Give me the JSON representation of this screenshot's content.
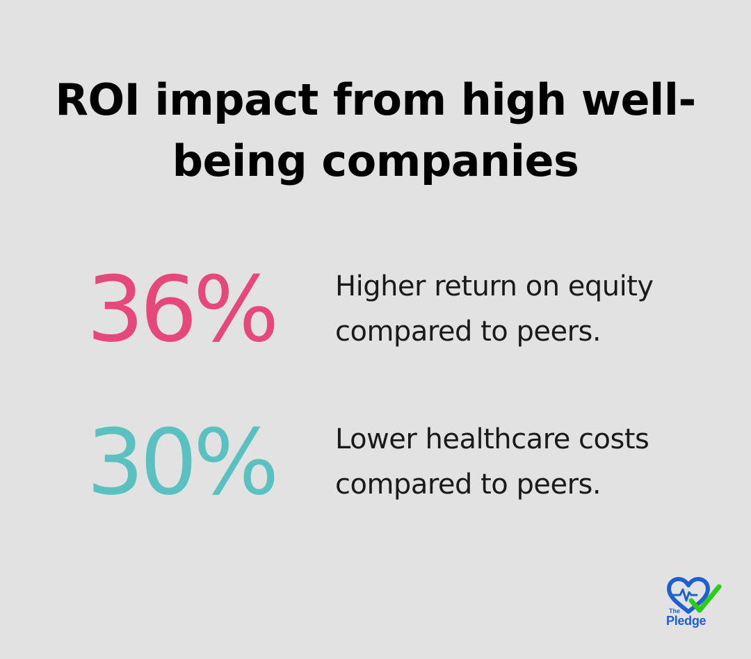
{
  "title": "ROI impact from high well-being companies",
  "stats": [
    {
      "value": "36%",
      "description": "Higher return on equity compared to peers.",
      "color": "#e5487a"
    },
    {
      "value": "30%",
      "description": "Lower healthcare costs compared to peers.",
      "color": "#5bc0c0"
    }
  ],
  "logo": {
    "line1": "The",
    "line2": "Pledge",
    "icon": "heart-check-icon",
    "colors": {
      "heart": "#1f5fd0",
      "check": "#2ecc1a"
    }
  }
}
